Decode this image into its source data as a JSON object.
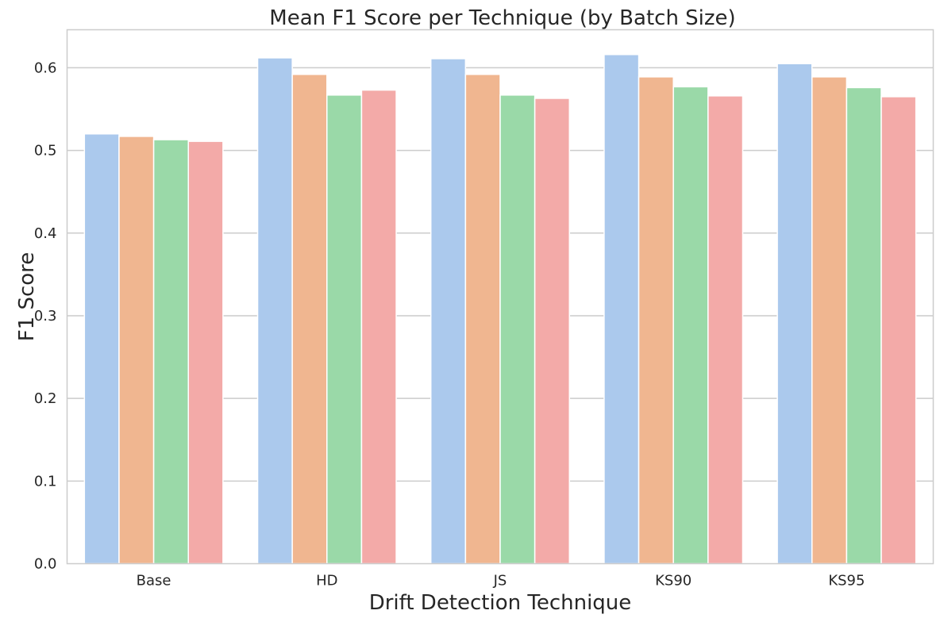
{
  "chart_data": {
    "type": "bar",
    "title": "Mean F1 Score per Technique (by Batch Size)",
    "xlabel": "Drift Detection Technique",
    "ylabel": "F1 Score",
    "categories": [
      "Base",
      "HD",
      "JS",
      "KS90",
      "KS95"
    ],
    "ylim": [
      0,
      0.646
    ],
    "yticks": [
      "0.0",
      "0.1",
      "0.2",
      "0.3",
      "0.4",
      "0.5",
      "0.6"
    ],
    "grid": true,
    "legend": "none",
    "series": [
      {
        "values": [
          0.52,
          0.612,
          0.611,
          0.616,
          0.605
        ],
        "color": "#abc9ed"
      },
      {
        "values": [
          0.517,
          0.592,
          0.592,
          0.589,
          0.589
        ],
        "color": "#f0b690"
      },
      {
        "values": [
          0.513,
          0.567,
          0.567,
          0.577,
          0.576
        ],
        "color": "#9ad9a8"
      },
      {
        "values": [
          0.511,
          0.573,
          0.563,
          0.566,
          0.565
        ],
        "color": "#f3aaa8"
      }
    ]
  }
}
